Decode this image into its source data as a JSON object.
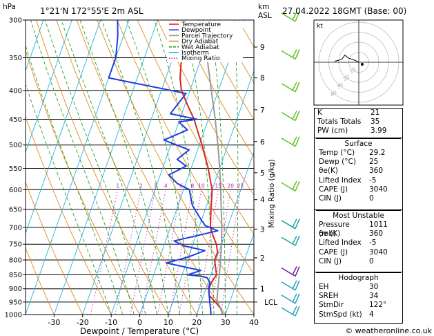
{
  "header": {
    "unit_left": "hPa",
    "location": "1°21'N  172°55'E  2m  ASL",
    "unit_km": "km",
    "unit_asl": "ASL",
    "datetime": "27.04.2022  18GMT  (Base: 00)"
  },
  "chart_data": {
    "type": "line",
    "title": "",
    "xlabel": "Dewpoint / Temperature (°C)",
    "ylabel": "hPa",
    "mixing_ratio_label": "Mixing Ratio (g/kg)",
    "xlim": [
      -40,
      40
    ],
    "ylim": [
      1000,
      300
    ],
    "y_scale": "log",
    "x_ticks": [
      "-30",
      "-20",
      "-10",
      "0",
      "10",
      "20",
      "30",
      "40"
    ],
    "p_ticks": [
      "300",
      "350",
      "400",
      "450",
      "500",
      "550",
      "600",
      "650",
      "700",
      "750",
      "800",
      "850",
      "900",
      "950",
      "1000"
    ],
    "km_ticks": [
      {
        "km": "1",
        "p": 900
      },
      {
        "km": "2",
        "p": 793
      },
      {
        "km": "3",
        "p": 705
      },
      {
        "km": "4",
        "p": 625
      },
      {
        "km": "5",
        "p": 560
      },
      {
        "km": "6",
        "p": 493
      },
      {
        "km": "7",
        "p": 433
      },
      {
        "km": "8",
        "p": 380
      },
      {
        "km": "9",
        "p": 335
      }
    ],
    "lcl_label": "LCL",
    "lcl_p": 950,
    "mixing_ratio_values": [
      "1",
      "2",
      "3",
      "4",
      "6",
      "8",
      "10",
      "15",
      "20",
      "25"
    ],
    "legend": [
      {
        "name": "Temperature",
        "color": "#e02020"
      },
      {
        "name": "Dewpoint",
        "color": "#1a3ee0"
      },
      {
        "name": "Parcel Trajectory",
        "color": "#999999"
      },
      {
        "name": "Dry Adiabat",
        "color": "#e08a1a"
      },
      {
        "name": "Wet Adiabat",
        "color": "#2aa02a"
      },
      {
        "name": "Isotherm",
        "color": "#20b4e0"
      },
      {
        "name": "Mixing Ratio",
        "color": "#c020c0"
      }
    ],
    "series": [
      {
        "name": "Temperature",
        "points": [
          [
            29.2,
            1000
          ],
          [
            27.5,
            975
          ],
          [
            25,
            950
          ],
          [
            22,
            925
          ],
          [
            21,
            900
          ],
          [
            21.2,
            875
          ],
          [
            22,
            850
          ],
          [
            20.8,
            825
          ],
          [
            19.5,
            800
          ],
          [
            19.6,
            775
          ],
          [
            18.2,
            750
          ],
          [
            16,
            725
          ],
          [
            14,
            700
          ],
          [
            12,
            650
          ],
          [
            10,
            600
          ],
          [
            8,
            575
          ],
          [
            6,
            550
          ],
          [
            3.5,
            525
          ],
          [
            1,
            500
          ],
          [
            -2,
            475
          ],
          [
            -5,
            450
          ],
          [
            -9,
            425
          ],
          [
            -13,
            400
          ],
          [
            -15,
            380
          ],
          [
            -17,
            350
          ],
          [
            -20,
            325
          ],
          [
            -23,
            300
          ]
        ]
      },
      {
        "name": "Dewpoint",
        "points": [
          [
            25,
            1000
          ],
          [
            24,
            975
          ],
          [
            23,
            950
          ],
          [
            22,
            925
          ],
          [
            21,
            900
          ],
          [
            20.5,
            875
          ],
          [
            19,
            860
          ],
          [
            17,
            855
          ],
          [
            12,
            850
          ],
          [
            16,
            835
          ],
          [
            3,
            810
          ],
          [
            10,
            790
          ],
          [
            15,
            770
          ],
          [
            7,
            755
          ],
          [
            3,
            740
          ],
          [
            17,
            710
          ],
          [
            12,
            695
          ],
          [
            10,
            680
          ],
          [
            5,
            640
          ],
          [
            2,
            600
          ],
          [
            -3,
            585
          ],
          [
            -7,
            565
          ],
          [
            -2,
            545
          ],
          [
            -6,
            530
          ],
          [
            -3,
            510
          ],
          [
            -13,
            490
          ],
          [
            -6,
            470
          ],
          [
            -10,
            455
          ],
          [
            -4,
            450
          ],
          [
            -14,
            440
          ],
          [
            -11,
            405
          ],
          [
            -40,
            380
          ],
          [
            -40,
            350
          ],
          [
            -42,
            320
          ],
          [
            -44,
            300
          ]
        ]
      },
      {
        "name": "Parcel Trajectory",
        "points": [
          [
            29.2,
            1000
          ],
          [
            26.5,
            960
          ],
          [
            25.2,
            940
          ],
          [
            24.2,
            900
          ],
          [
            23,
            850
          ],
          [
            21.6,
            800
          ],
          [
            20,
            750
          ],
          [
            18,
            700
          ],
          [
            15.6,
            650
          ],
          [
            13,
            600
          ],
          [
            10,
            550
          ],
          [
            6.5,
            500
          ],
          [
            2.4,
            450
          ],
          [
            -2.5,
            400
          ],
          [
            -8,
            350
          ],
          [
            -14,
            300
          ]
        ]
      }
    ],
    "hodograph": {
      "label": "kt",
      "ring_labels": [
        "10",
        "20",
        "30",
        "40"
      ],
      "trace_kt": [
        [
          0,
          0
        ],
        [
          -4,
          2
        ],
        [
          -10,
          4
        ],
        [
          -14,
          7
        ],
        [
          -17,
          3
        ],
        [
          -20,
          2
        ],
        [
          -24,
          1
        ]
      ],
      "storm_motion_kt": [
        3.4,
        2.1
      ]
    },
    "wind_barbs": [
      {
        "p": 300
      },
      {
        "p": 350
      },
      {
        "p": 400
      },
      {
        "p": 450
      },
      {
        "p": 500
      },
      {
        "p": 600
      },
      {
        "p": 700
      },
      {
        "p": 750
      },
      {
        "p": 850
      },
      {
        "p": 900
      },
      {
        "p": 950
      },
      {
        "p": 1000
      }
    ]
  },
  "indices": {
    "rows": [
      {
        "label": "K",
        "value": "21"
      },
      {
        "label": "Totals Totals",
        "value": "35"
      },
      {
        "label": "PW (cm)",
        "value": "3.99"
      }
    ]
  },
  "surface": {
    "title": "Surface",
    "rows": [
      {
        "label": "Temp (°C)",
        "value": "29.2"
      },
      {
        "label": "Dewp (°C)",
        "value": "25"
      },
      {
        "label": "θe(K)",
        "value": "360"
      },
      {
        "label": "Lifted Index",
        "value": "-5"
      },
      {
        "label": "CAPE (J)",
        "value": "3040"
      },
      {
        "label": "CIN (J)",
        "value": "0"
      }
    ]
  },
  "most_unstable": {
    "title": "Most Unstable",
    "rows": [
      {
        "label": "Pressure (mb)",
        "value": "1011"
      },
      {
        "label": "θe (K)",
        "value": "360"
      },
      {
        "label": "Lifted Index",
        "value": "-5"
      },
      {
        "label": "CAPE (J)",
        "value": "3040"
      },
      {
        "label": "CIN (J)",
        "value": "0"
      }
    ]
  },
  "hodograph_table": {
    "title": "Hodograph",
    "rows": [
      {
        "label": "EH",
        "value": "30"
      },
      {
        "label": "SREH",
        "value": "34"
      },
      {
        "label": "StmDir",
        "value": "122°"
      },
      {
        "label": "StmSpd (kt)",
        "value": "4"
      }
    ]
  },
  "footer": {
    "copyright": "© weatheronline.co.uk"
  }
}
